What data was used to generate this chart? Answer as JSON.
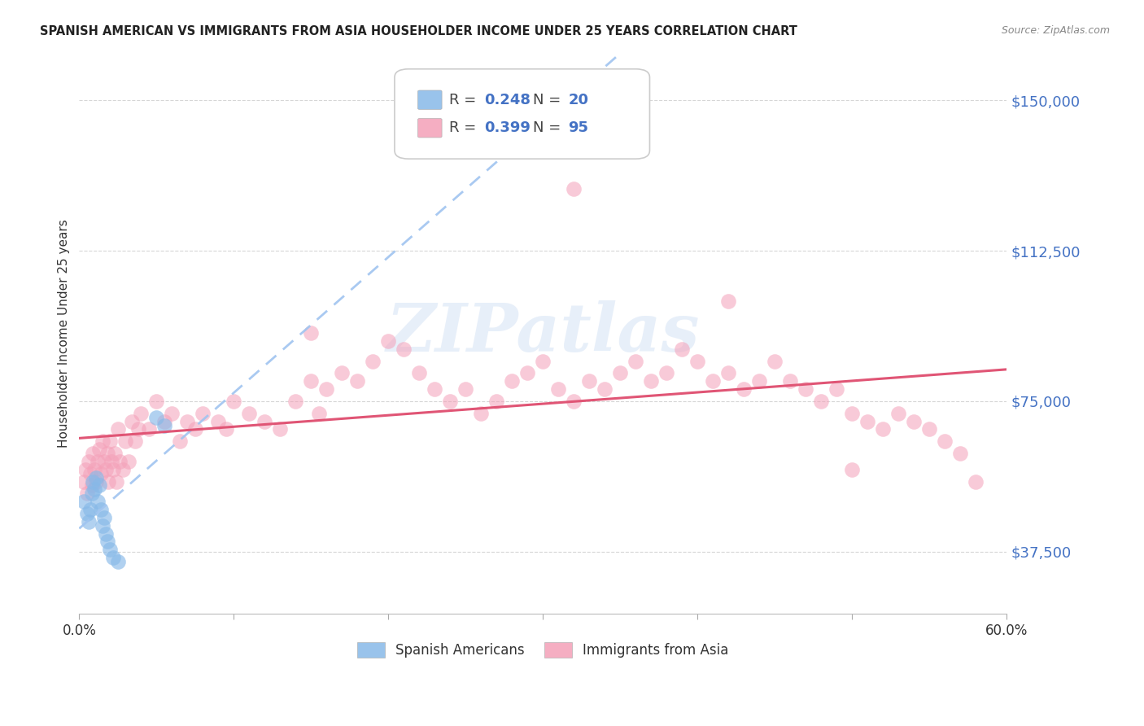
{
  "title": "SPANISH AMERICAN VS IMMIGRANTS FROM ASIA HOUSEHOLDER INCOME UNDER 25 YEARS CORRELATION CHART",
  "source": "Source: ZipAtlas.com",
  "ylabel": "Householder Income Under 25 years",
  "xlim": [
    0.0,
    0.6
  ],
  "ylim": [
    22000,
    162000
  ],
  "yticks": [
    37500,
    75000,
    112500,
    150000
  ],
  "ytick_labels": [
    "$37,500",
    "$75,000",
    "$112,500",
    "$150,000"
  ],
  "bg_color": "#ffffff",
  "grid_color": "#cccccc",
  "blue_color": "#87b9e8",
  "pink_color": "#f4a0b8",
  "blue_line_color": "#a0c4f0",
  "pink_line_color": "#e05575",
  "label_color": "#4472c4",
  "watermark_text": "ZIPatlas",
  "sp_x": [
    0.003,
    0.005,
    0.006,
    0.007,
    0.008,
    0.009,
    0.01,
    0.011,
    0.012,
    0.013,
    0.014,
    0.015,
    0.016,
    0.017,
    0.018,
    0.02,
    0.022,
    0.025,
    0.05,
    0.055
  ],
  "sp_y": [
    50000,
    47000,
    45000,
    48000,
    52000,
    55000,
    53000,
    56000,
    50000,
    54000,
    48000,
    44000,
    46000,
    42000,
    40000,
    38000,
    36000,
    35000,
    71000,
    69000
  ],
  "asia_x": [
    0.003,
    0.004,
    0.005,
    0.006,
    0.007,
    0.008,
    0.009,
    0.01,
    0.011,
    0.012,
    0.013,
    0.014,
    0.015,
    0.016,
    0.017,
    0.018,
    0.019,
    0.02,
    0.021,
    0.022,
    0.023,
    0.024,
    0.025,
    0.026,
    0.028,
    0.03,
    0.032,
    0.034,
    0.036,
    0.038,
    0.04,
    0.045,
    0.05,
    0.055,
    0.06,
    0.065,
    0.07,
    0.075,
    0.08,
    0.09,
    0.095,
    0.1,
    0.11,
    0.12,
    0.13,
    0.14,
    0.15,
    0.155,
    0.16,
    0.17,
    0.18,
    0.19,
    0.2,
    0.21,
    0.22,
    0.23,
    0.24,
    0.25,
    0.26,
    0.27,
    0.28,
    0.29,
    0.3,
    0.31,
    0.32,
    0.33,
    0.34,
    0.35,
    0.36,
    0.37,
    0.38,
    0.39,
    0.4,
    0.41,
    0.42,
    0.43,
    0.44,
    0.45,
    0.46,
    0.47,
    0.48,
    0.49,
    0.5,
    0.51,
    0.52,
    0.53,
    0.54,
    0.55,
    0.56,
    0.57,
    0.32,
    0.15,
    0.42,
    0.5,
    0.58
  ],
  "asia_y": [
    55000,
    58000,
    52000,
    60000,
    57000,
    54000,
    62000,
    58000,
    55000,
    60000,
    63000,
    57000,
    65000,
    60000,
    58000,
    62000,
    55000,
    65000,
    60000,
    58000,
    62000,
    55000,
    68000,
    60000,
    58000,
    65000,
    60000,
    70000,
    65000,
    68000,
    72000,
    68000,
    75000,
    70000,
    72000,
    65000,
    70000,
    68000,
    72000,
    70000,
    68000,
    75000,
    72000,
    70000,
    68000,
    75000,
    80000,
    72000,
    78000,
    82000,
    80000,
    85000,
    90000,
    88000,
    82000,
    78000,
    75000,
    78000,
    72000,
    75000,
    80000,
    82000,
    85000,
    78000,
    75000,
    80000,
    78000,
    82000,
    85000,
    80000,
    82000,
    88000,
    85000,
    80000,
    82000,
    78000,
    80000,
    85000,
    80000,
    78000,
    75000,
    78000,
    72000,
    70000,
    68000,
    72000,
    70000,
    68000,
    65000,
    62000,
    128000,
    92000,
    100000,
    58000,
    55000
  ]
}
